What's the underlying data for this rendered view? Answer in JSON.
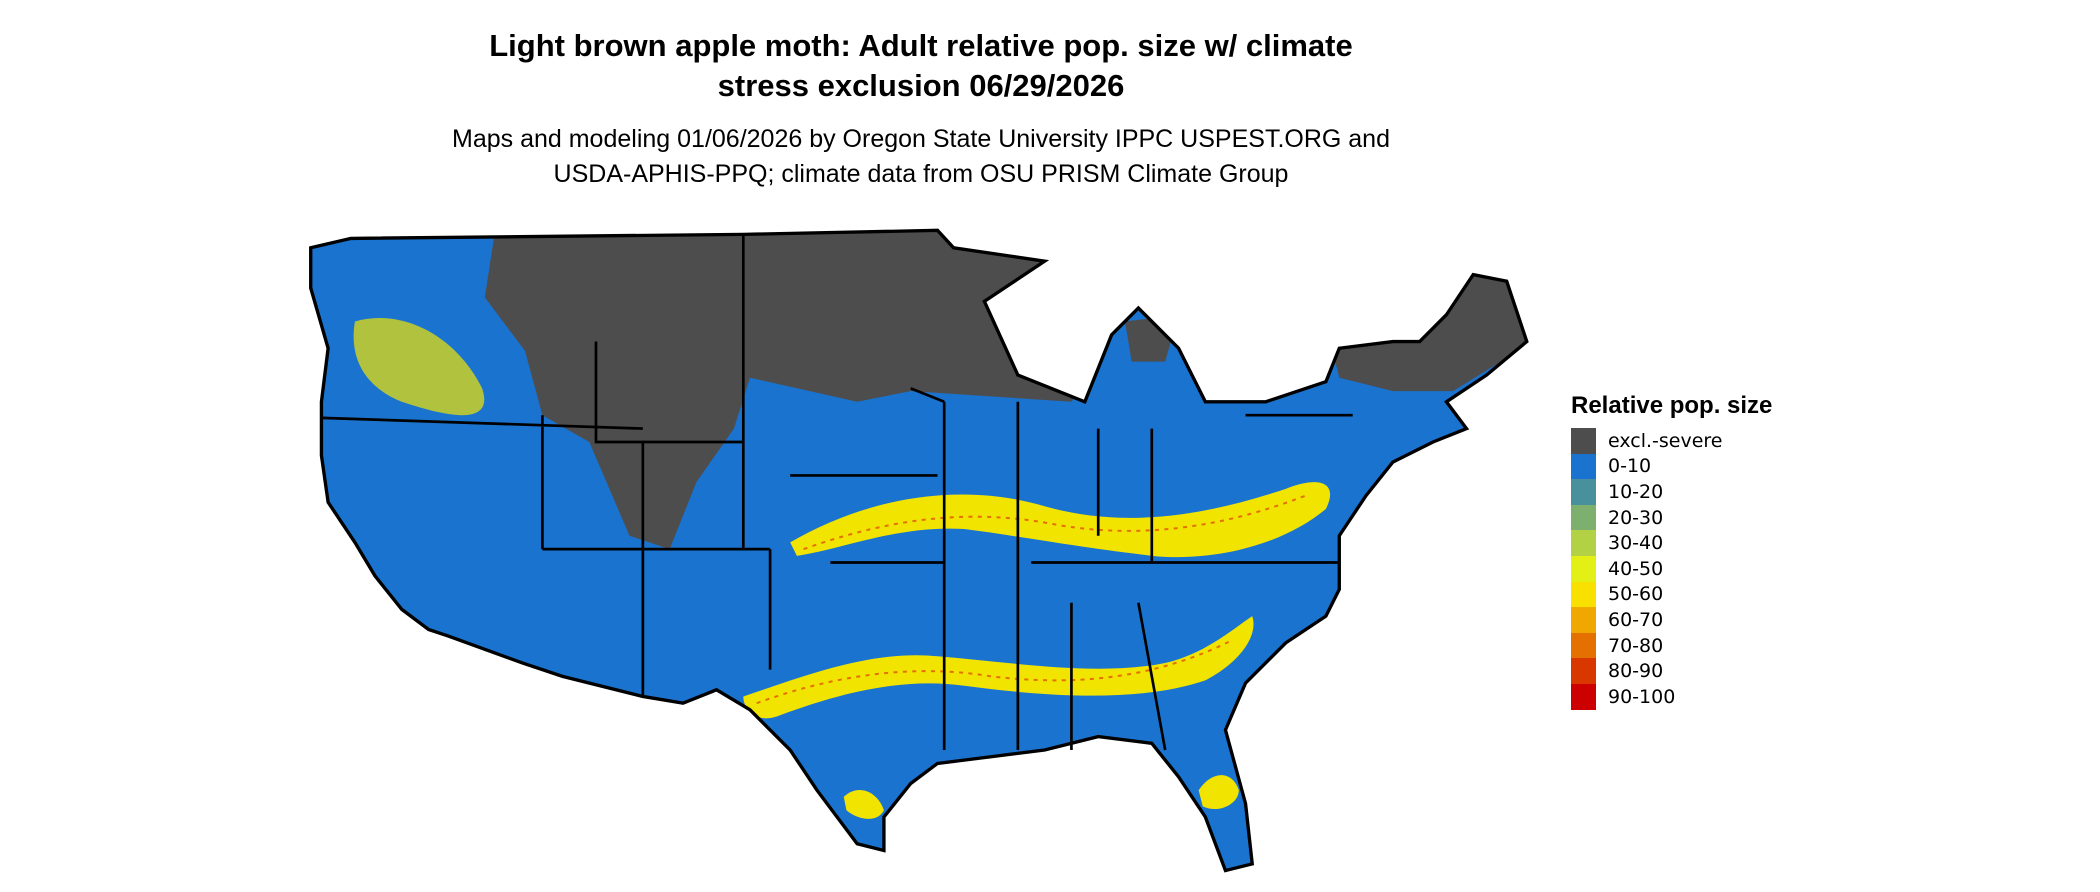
{
  "title": "Light brown apple moth: Adult relative pop. size w/ climate stress exclusion 06/29/2026",
  "title_lines": [
    "Light brown apple moth: Adult relative pop. size w/ climate",
    "stress exclusion 06/29/2026"
  ],
  "subtitle_lines": [
    "Maps and modeling 01/06/2026 by Oregon State University IPPC USPEST.ORG and",
    "USDA-APHIS-PPQ; climate data from OSU PRISM Climate Group"
  ],
  "legend": {
    "title": "Relative pop. size",
    "items": [
      {
        "label": "excl.-severe",
        "color": "#4d4d4d"
      },
      {
        "label": "0-10",
        "color": "#1a73cf"
      },
      {
        "label": "10-20",
        "color": "#47909c"
      },
      {
        "label": "20-30",
        "color": "#7db06e"
      },
      {
        "label": "30-40",
        "color": "#b3d145"
      },
      {
        "label": "40-50",
        "color": "#e3f016"
      },
      {
        "label": "50-60",
        "color": "#f8e000"
      },
      {
        "label": "60-70",
        "color": "#f0a800"
      },
      {
        "label": "70-80",
        "color": "#e47000"
      },
      {
        "label": "80-90",
        "color": "#d83800"
      },
      {
        "label": "90-100",
        "color": "#cc0000"
      }
    ]
  }
}
